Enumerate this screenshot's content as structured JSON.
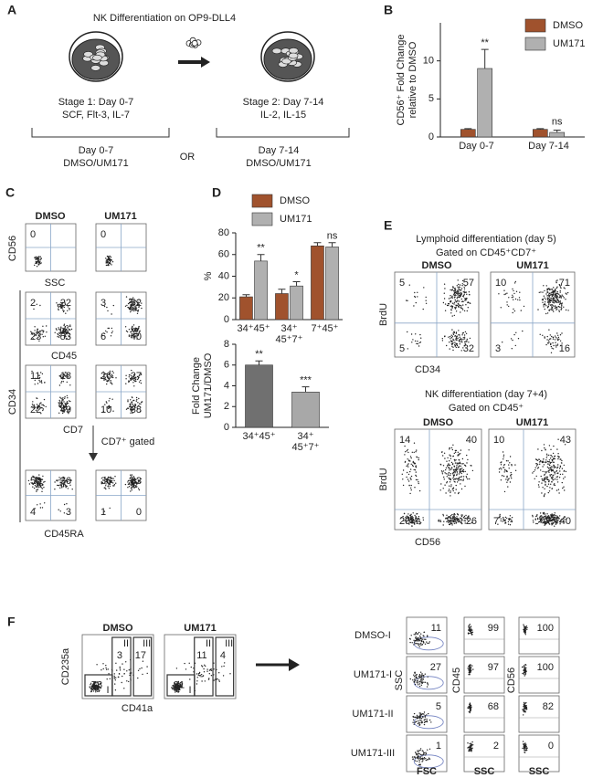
{
  "panel_labels": [
    "A",
    "B",
    "C",
    "D",
    "E",
    "F"
  ],
  "panel_a": {
    "title": "NK Differentiation on OP9-DLL4",
    "stage1": [
      "Stage 1: Day 0-7",
      "SCF, Flt-3, IL-7"
    ],
    "stage2": [
      "Stage 2: Day 7-14",
      "IL-2, IL-15"
    ],
    "option1": [
      "Day 0-7",
      "DMSO/UM171"
    ],
    "or": "OR",
    "option2": [
      "Day 7-14",
      "DMSO/UM171"
    ]
  },
  "chart_data": [
    {
      "type": "bar",
      "y_label": [
        "CD56⁺ Fold Change",
        "relative to DMSO"
      ],
      "categories": [
        [
          "Day 0-7"
        ],
        [
          "Day 7-14"
        ]
      ],
      "series": [
        {
          "name": "DMSO",
          "color": "#a0522d",
          "values": [
            1,
            1
          ],
          "errors": [
            0.1,
            0.1
          ]
        },
        {
          "name": "UM171",
          "color": "#b0b0b0",
          "values": [
            9,
            0.6
          ],
          "errors": [
            2.5,
            0.3
          ]
        }
      ],
      "annotations": [
        "**",
        "ns"
      ],
      "ylim": [
        0,
        15
      ],
      "yticks": [
        0,
        5,
        10
      ]
    },
    {
      "type": "bar",
      "y_label": [
        "%"
      ],
      "categories": [
        [
          "34⁺45⁺"
        ],
        [
          "34⁺",
          "45⁺7⁺"
        ],
        [
          "7⁺45⁺"
        ]
      ],
      "series": [
        {
          "name": "DMSO",
          "color": "#a0522d",
          "values": [
            21,
            24,
            68
          ],
          "errors": [
            2,
            4,
            3
          ]
        },
        {
          "name": "UM171",
          "color": "#b0b0b0",
          "values": [
            54,
            31,
            67
          ],
          "errors": [
            6,
            4,
            4
          ]
        }
      ],
      "annotations": [
        "**",
        "*",
        "ns"
      ],
      "ylim": [
        0,
        80
      ],
      "yticks": [
        0,
        20,
        40,
        60,
        80
      ]
    },
    {
      "type": "bar",
      "y_label": [
        "Fold Change",
        "UM171/DMSO"
      ],
      "categories": [
        [
          "34⁺45⁺"
        ],
        [
          "34⁺",
          "45⁺7⁺"
        ]
      ],
      "series": [
        {
          "colors": [
            "#707070",
            "#a8a8a8"
          ],
          "values": [
            6,
            3.4
          ],
          "errors": [
            0.4,
            0.5
          ]
        }
      ],
      "annotations": [
        "**",
        "***"
      ],
      "ylim": [
        0,
        8
      ],
      "yticks": [
        0,
        2,
        4,
        6,
        8
      ]
    }
  ],
  "panel_c": {
    "columns": [
      "DMSO",
      "UM171"
    ],
    "x_labels": [
      "SSC",
      "CD45",
      "CD7",
      "CD45RA"
    ],
    "y_labels": [
      "CD56",
      "CD34"
    ],
    "gated_label": "CD7⁺ gated",
    "plots": [
      [
        [
          0
        ],
        [
          0
        ]
      ],
      [
        [
          2,
          22,
          23,
          53
        ],
        [
          3,
          52,
          6,
          40
        ]
      ],
      [
        [
          11,
          18,
          22,
          49
        ],
        [
          26,
          27,
          10,
          38
        ]
      ],
      [
        [
          58,
          36,
          4,
          3
        ],
        [
          36,
          63,
          1,
          0
        ]
      ]
    ]
  },
  "panel_e": {
    "top": {
      "title": [
        "Lymphoid differentiation (day 5)",
        "Gated on CD45⁺CD7⁺"
      ],
      "columns": [
        "DMSO",
        "UM171"
      ],
      "x_label": "CD34",
      "y_label": "BrdU",
      "plots": [
        [
          5,
          57,
          5,
          32
        ],
        [
          10,
          71,
          3,
          16
        ]
      ]
    },
    "bottom": {
      "title": [
        "NK differentiation (day 7+4)",
        "Gated on CD45⁺"
      ],
      "columns": [
        "DMSO",
        "UM171"
      ],
      "x_label": "CD56",
      "y_label": "BrdU",
      "plots": [
        [
          14,
          40,
          20,
          26
        ],
        [
          10,
          43,
          7,
          40
        ]
      ]
    }
  },
  "panel_f": {
    "columns": [
      "DMSO",
      "UM171"
    ],
    "x_label": "CD41a",
    "y_label": "CD235a",
    "gates": [
      [
        {
          "name": "I",
          "value": 78
        },
        {
          "name": "II",
          "value": 3
        },
        {
          "name": "III",
          "value": 17
        }
      ],
      [
        {
          "name": "I",
          "value": 81
        },
        {
          "name": "II",
          "value": 11
        },
        {
          "name": "III",
          "value": 4
        }
      ]
    ],
    "rows": [
      {
        "name": "DMSO-I",
        "values": [
          11,
          99,
          100
        ]
      },
      {
        "name": "UM171-I",
        "values": [
          27,
          97,
          100
        ]
      },
      {
        "name": "UM171-II",
        "values": [
          5,
          68,
          82
        ]
      },
      {
        "name": "UM171-III",
        "values": [
          1,
          2,
          0
        ]
      }
    ],
    "y_labels": [
      "SSC",
      "CD45",
      "CD56"
    ],
    "x_labels": [
      "FSC",
      "SSC",
      "SSC"
    ]
  }
}
